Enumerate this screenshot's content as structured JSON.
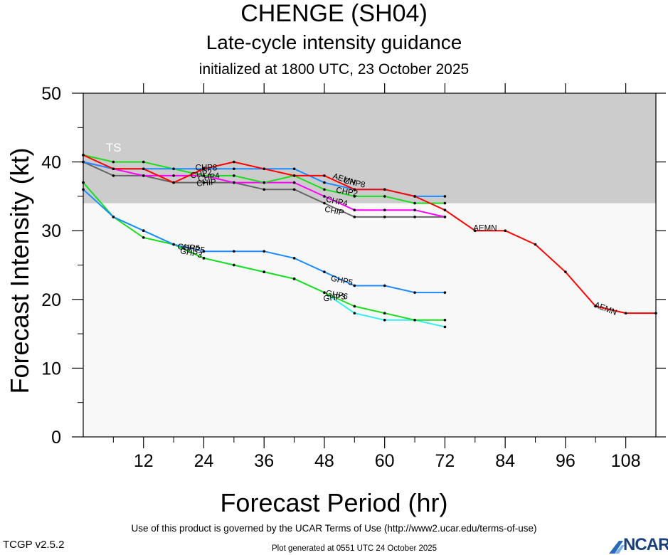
{
  "header": {
    "title": "CHENGE (SH04)",
    "subtitle": "Late-cycle intensity guidance",
    "init": "initialized at 1800 UTC, 23 October 2025"
  },
  "footer": {
    "terms": "Use of this product is governed by the UCAR Terms of Use (http://www2.ucar.edu/terms-of-use)",
    "version": "TCGP v2.5.2",
    "generated": "Plot generated at 0551 UTC   24 October 2025",
    "logo": "NCAR"
  },
  "colors": {
    "red": "#ff0000",
    "green": "#1edc1e",
    "blue": "#1e8cff",
    "magenta": "#ff00ff",
    "gray": "#666666",
    "cyan": "#33eeee",
    "ts_band": "#cccccc",
    "plot_bg": "#f8f8f8"
  },
  "chart_data": {
    "type": "line",
    "title": "CHENGE (SH04)",
    "xlabel": "Forecast Period (hr)",
    "ylabel": "Forecast Intensity (kt)",
    "xlim": [
      0,
      114
    ],
    "ylim": [
      0,
      50
    ],
    "xticks": [
      12,
      24,
      36,
      48,
      60,
      72,
      84,
      96,
      108
    ],
    "yticks": [
      0,
      10,
      20,
      30,
      40,
      50
    ],
    "bands": [
      {
        "label": "TS",
        "from": 34,
        "to": 50
      }
    ],
    "series": [
      {
        "name": "AEMN",
        "color": "red",
        "x": [
          0,
          6,
          12,
          18,
          24,
          30,
          36,
          42,
          48,
          54,
          60,
          66,
          72,
          78,
          84,
          90,
          96,
          102,
          108,
          114
        ],
        "y": [
          41,
          39,
          39,
          37,
          39,
          40,
          39,
          38,
          38,
          36,
          36,
          35,
          33,
          30,
          30,
          28,
          24,
          19,
          18,
          18
        ],
        "labels": [
          {
            "x": 52,
            "y": 37.5,
            "angle": 18
          },
          {
            "x": 80,
            "y": 30.4,
            "angle": 0
          },
          {
            "x": 104,
            "y": 18.7,
            "angle": 22
          }
        ]
      },
      {
        "name": "CHP8",
        "color": "blue",
        "x": [
          0,
          6,
          12,
          18,
          24,
          30,
          36,
          42,
          48,
          54,
          60,
          66,
          72
        ],
        "y": [
          40,
          39,
          39,
          39,
          39,
          39,
          39,
          39,
          37,
          36,
          36,
          35,
          35
        ],
        "labels": [
          {
            "x": 24.5,
            "y": 39.2,
            "angle": 0
          },
          {
            "x": 54,
            "y": 37,
            "angle": 12
          }
        ]
      },
      {
        "name": "CHP2",
        "color": "green",
        "x": [
          0,
          6,
          12,
          18,
          24,
          30,
          36,
          42,
          48,
          54,
          60,
          66,
          72
        ],
        "y": [
          41,
          40,
          40,
          39,
          38,
          38,
          37,
          38,
          36,
          35,
          35,
          34,
          34
        ],
        "labels": [
          {
            "x": 23.5,
            "y": 38.3,
            "angle": -10
          },
          {
            "x": 52.5,
            "y": 35.7,
            "angle": 10
          }
        ]
      },
      {
        "name": "CHP4",
        "color": "magenta",
        "x": [
          0,
          6,
          12,
          18,
          24,
          30,
          36,
          42,
          48,
          54,
          60,
          66,
          72
        ],
        "y": [
          40,
          39,
          38,
          38,
          38,
          37,
          37,
          37,
          35,
          33,
          33,
          33,
          32
        ],
        "labels": [
          {
            "x": 25,
            "y": 37.8,
            "angle": -10
          },
          {
            "x": 50.5,
            "y": 34.3,
            "angle": 12
          }
        ]
      },
      {
        "name": "CHIP",
        "color": "gray",
        "x": [
          0,
          6,
          12,
          18,
          24,
          30,
          36,
          42,
          48,
          54,
          60,
          66,
          72
        ],
        "y": [
          40,
          38,
          38,
          37,
          37,
          37,
          36,
          36,
          34,
          32,
          32,
          32,
          32
        ],
        "labels": [
          {
            "x": 24.5,
            "y": 37,
            "angle": -5
          },
          {
            "x": 50,
            "y": 32.9,
            "angle": 12
          }
        ]
      },
      {
        "name": "GHP5",
        "color": "blue",
        "x": [
          0,
          6,
          12,
          18,
          24,
          30,
          36,
          42,
          48,
          54,
          60,
          66,
          72
        ],
        "y": [
          36,
          32,
          30,
          28,
          27,
          27,
          27,
          26,
          24,
          22,
          22,
          21,
          21
        ],
        "labels": [
          {
            "x": 22,
            "y": 27.4,
            "angle": 8
          },
          {
            "x": 51.5,
            "y": 22.8,
            "angle": 12
          }
        ]
      },
      {
        "name": "GHP3",
        "color": "green",
        "x": [
          0,
          6,
          12,
          18,
          24,
          30,
          36,
          42,
          48,
          54,
          60,
          66,
          72
        ],
        "y": [
          37,
          32,
          29,
          28,
          26,
          25,
          24,
          23,
          21,
          19,
          18,
          17,
          17
        ],
        "labels": [
          {
            "x": 21.5,
            "y": 26.8,
            "angle": 12
          },
          {
            "x": 50,
            "y": 20.3,
            "angle": -6
          }
        ]
      },
      {
        "name": "GHP6",
        "color": "cyan",
        "x": [
          0,
          6,
          12,
          18,
          24,
          30,
          36,
          42,
          48,
          54,
          60,
          66,
          72
        ],
        "y": [
          37,
          32,
          30,
          28,
          26,
          25,
          24,
          23,
          21,
          18,
          17,
          17,
          16
        ],
        "labels": [
          {
            "x": 21,
            "y": 27.6,
            "angle": 4
          },
          {
            "x": 50.5,
            "y": 20.7,
            "angle": 10
          }
        ]
      }
    ]
  }
}
